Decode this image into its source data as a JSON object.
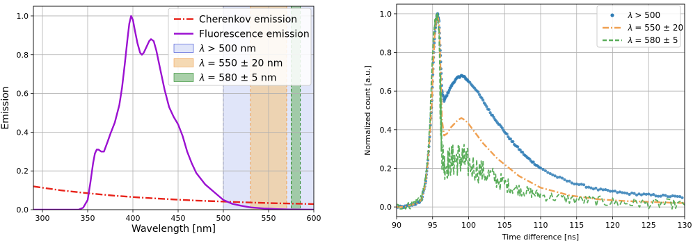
{
  "chart_data": [
    {
      "type": "line",
      "xlabel": "Wavelength [nm]",
      "ylabel": "Emission",
      "xlim": [
        290,
        600
      ],
      "ylim": [
        0,
        1.05
      ],
      "xticks": [
        300,
        350,
        400,
        450,
        500,
        550,
        600
      ],
      "yticks": [
        0.0,
        0.2,
        0.4,
        0.6,
        0.8,
        1.0
      ],
      "grid": true,
      "legend_position": "top-right",
      "bands": [
        {
          "name": "λ > 500 nm",
          "label": "𝜆 > 500 nm",
          "x0": 500,
          "x1": 600,
          "color": "#d6dcf7",
          "edge": "#3040d0",
          "edge_dash": "4,3"
        },
        {
          "name": "λ = 550 ± 20 nm",
          "label": "𝜆 = 550 ± 20 nm",
          "x0": 530,
          "x1": 570,
          "color": "#f2cc9a",
          "edge": "#f0a050",
          "edge_dash": "4,3"
        },
        {
          "name": "λ = 580 ± 5 nm",
          "label": "𝜆 = 580 ± 5 nm",
          "x0": 575,
          "x1": 585,
          "color": "#8cc08c",
          "edge": "#2a8a2a",
          "edge_dash": "4,3"
        }
      ],
      "series": [
        {
          "name": "Cherenkov emission",
          "color": "#e8231a",
          "dash": "10,3,2,3",
          "x": [
            290,
            320,
            350,
            380,
            410,
            440,
            470,
            500,
            530,
            560,
            600
          ],
          "y": [
            0.12,
            0.1,
            0.085,
            0.072,
            0.062,
            0.054,
            0.047,
            0.042,
            0.037,
            0.033,
            0.029
          ]
        },
        {
          "name": "Fluorescence emission",
          "color": "#9b11d1",
          "dash": "",
          "x": [
            290,
            340,
            345,
            350,
            353,
            356,
            358,
            360,
            362,
            365,
            368,
            372,
            375,
            380,
            385,
            388,
            391,
            394,
            396,
            398,
            400,
            402,
            405,
            408,
            410,
            412,
            415,
            418,
            420,
            423,
            426,
            430,
            435,
            440,
            445,
            450,
            455,
            460,
            465,
            470,
            475,
            480,
            490,
            500,
            510,
            520,
            530,
            545,
            560,
            575,
            600
          ],
          "y": [
            0.0,
            0.0,
            0.01,
            0.05,
            0.14,
            0.24,
            0.29,
            0.31,
            0.31,
            0.3,
            0.3,
            0.35,
            0.39,
            0.45,
            0.54,
            0.63,
            0.75,
            0.88,
            0.96,
            1.0,
            0.98,
            0.93,
            0.86,
            0.81,
            0.8,
            0.81,
            0.84,
            0.87,
            0.88,
            0.87,
            0.82,
            0.73,
            0.62,
            0.53,
            0.48,
            0.44,
            0.38,
            0.3,
            0.24,
            0.19,
            0.16,
            0.13,
            0.09,
            0.05,
            0.03,
            0.02,
            0.012,
            0.006,
            0.003,
            0.001,
            0.0
          ]
        }
      ],
      "legend": [
        {
          "label": "Cherenkov emission",
          "kind": "line",
          "ref": "Cherenkov emission"
        },
        {
          "label": "Fluorescence emission",
          "kind": "line",
          "ref": "Fluorescence emission"
        },
        {
          "label": "𝜆 > 500 nm",
          "kind": "patch",
          "ref": "λ > 500 nm"
        },
        {
          "label": "𝜆 = 550 ± 20 nm",
          "kind": "patch",
          "ref": "λ = 550 ± 20 nm"
        },
        {
          "label": "𝜆 = 580 ± 5 nm",
          "kind": "patch",
          "ref": "λ = 580 ± 5 nm"
        }
      ]
    },
    {
      "type": "line",
      "xlabel": "Time difference [ns]",
      "ylabel": "Normalized count [a.u.]",
      "xlim": [
        90,
        130
      ],
      "ylim": [
        -0.05,
        1.05
      ],
      "xticks": [
        90,
        95,
        100,
        105,
        110,
        115,
        120,
        125,
        130
      ],
      "yticks": [
        0.0,
        0.2,
        0.4,
        0.6,
        0.8,
        1.0
      ],
      "grid": true,
      "legend_position": "top-right",
      "series": [
        {
          "name": "λ > 500",
          "label": "𝜆 > 500",
          "style": "points",
          "color": "#2f7cb5",
          "x": [
            90,
            91,
            92,
            93,
            93.5,
            94,
            94.3,
            94.6,
            94.9,
            95.1,
            95.3,
            95.5,
            95.7,
            95.9,
            96.1,
            96.3,
            96.6,
            97,
            97.5,
            98,
            98.5,
            99,
            99.5,
            100,
            101,
            102,
            103,
            104,
            105,
            106,
            107,
            108,
            109,
            110,
            112,
            114,
            116,
            118,
            120,
            122,
            124,
            126,
            128,
            130
          ],
          "y": [
            0.0,
            0.0,
            0.01,
            0.02,
            0.04,
            0.12,
            0.22,
            0.36,
            0.55,
            0.75,
            0.9,
            0.97,
            1.0,
            0.96,
            0.78,
            0.6,
            0.55,
            0.58,
            0.62,
            0.65,
            0.67,
            0.68,
            0.67,
            0.65,
            0.61,
            0.55,
            0.49,
            0.44,
            0.39,
            0.34,
            0.3,
            0.26,
            0.23,
            0.2,
            0.16,
            0.13,
            0.11,
            0.09,
            0.08,
            0.07,
            0.065,
            0.06,
            0.055,
            0.05
          ]
        },
        {
          "name": "λ = 550 ± 20",
          "label": "𝜆 = 550 ± 20",
          "style": "line",
          "color": "#f0a050",
          "dash": "9,3,2,3",
          "x": [
            90,
            91,
            92,
            93,
            93.5,
            94,
            94.3,
            94.6,
            94.9,
            95.1,
            95.3,
            95.5,
            95.7,
            95.9,
            96.1,
            96.3,
            96.6,
            97,
            97.5,
            98,
            98.5,
            99,
            99.5,
            100,
            101,
            102,
            103,
            104,
            105,
            106,
            107,
            108,
            109,
            110,
            112,
            114,
            116,
            118,
            120,
            122,
            124,
            126,
            128,
            130
          ],
          "y": [
            0.0,
            0.0,
            0.01,
            0.02,
            0.04,
            0.12,
            0.22,
            0.36,
            0.55,
            0.75,
            0.9,
            0.97,
            0.99,
            0.95,
            0.72,
            0.45,
            0.37,
            0.38,
            0.41,
            0.43,
            0.45,
            0.46,
            0.45,
            0.43,
            0.38,
            0.33,
            0.29,
            0.25,
            0.22,
            0.19,
            0.16,
            0.14,
            0.12,
            0.1,
            0.08,
            0.06,
            0.05,
            0.04,
            0.035,
            0.03,
            0.028,
            0.025,
            0.022,
            0.02
          ]
        },
        {
          "name": "λ = 580 ± 5",
          "label": "𝜆 = 580 ± 5",
          "style": "noisy",
          "color": "#5aad5a",
          "dash": "6,3",
          "x": [
            90,
            91,
            92,
            93,
            93.5,
            94,
            94.3,
            94.6,
            94.9,
            95.1,
            95.3,
            95.5,
            95.7,
            95.9,
            96.1,
            96.3,
            96.6,
            97,
            97.5,
            98,
            98.5,
            99,
            99.5,
            100,
            101,
            102,
            103,
            104,
            105,
            106,
            107,
            108,
            109,
            110,
            112,
            114,
            116,
            118,
            120,
            122,
            124,
            126,
            128,
            130
          ],
          "y": [
            0.0,
            0.0,
            0.01,
            0.04,
            0.05,
            0.14,
            0.24,
            0.42,
            0.7,
            0.88,
            0.95,
            0.98,
            0.99,
            0.9,
            0.55,
            0.3,
            0.22,
            0.22,
            0.24,
            0.24,
            0.25,
            0.25,
            0.24,
            0.22,
            0.2,
            0.18,
            0.16,
            0.14,
            0.12,
            0.1,
            0.09,
            0.08,
            0.07,
            0.06,
            0.05,
            0.04,
            0.035,
            0.03,
            0.025,
            0.02,
            0.02,
            0.015,
            0.015,
            0.01
          ]
        }
      ]
    }
  ]
}
